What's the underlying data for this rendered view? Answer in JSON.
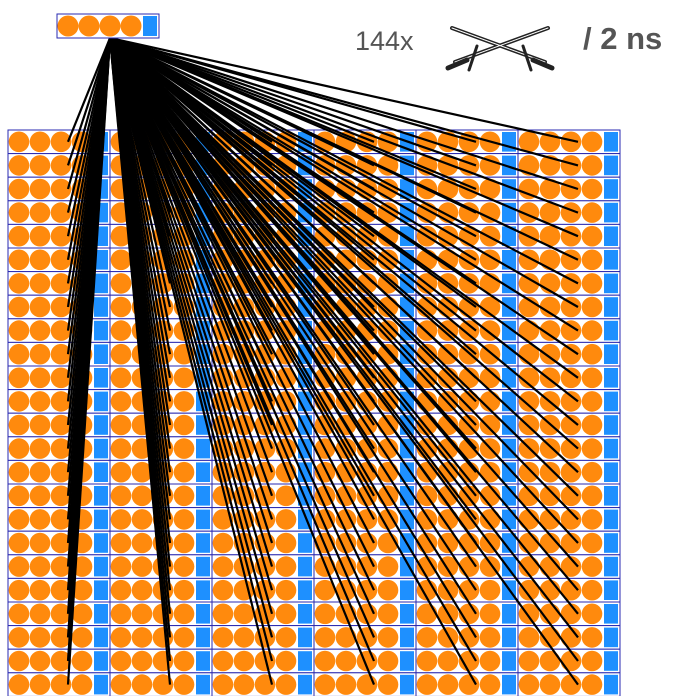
{
  "header": {
    "count": "144x",
    "rate": "/ 2 ns"
  }
}
